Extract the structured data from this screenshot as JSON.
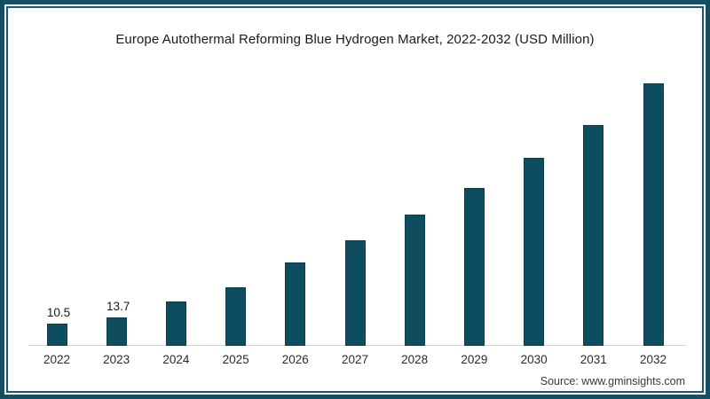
{
  "title": "Europe Autothermal Reforming Blue Hydrogen Market, 2022-2032 (USD Million)",
  "source": "Source: www.gminsights.com",
  "colors": {
    "bar_fill": "#0e4c5f",
    "bar_edge": "#0a3d4d",
    "frame_border": "#124f63",
    "axis_line": "#cdd2d5",
    "text": "#1b1b1b"
  },
  "chart_data": {
    "type": "bar",
    "title": "Europe Autothermal Reforming Blue Hydrogen Market, 2022-2032 (USD Million)",
    "xlabel": "",
    "ylabel": "",
    "categories": [
      "2022",
      "2023",
      "2024",
      "2025",
      "2026",
      "2027",
      "2028",
      "2029",
      "2030",
      "2031",
      "2032"
    ],
    "values": [
      10.5,
      13.7,
      21,
      28,
      40,
      50.5,
      62.5,
      75.5,
      90,
      105.5,
      125.5
    ],
    "data_labels": {
      "2022": "10.5",
      "2023": "13.7"
    },
    "ylim": [
      0,
      135
    ],
    "grid": false,
    "legend": false,
    "y_axis_shown": false,
    "x_axis_shown": true
  }
}
